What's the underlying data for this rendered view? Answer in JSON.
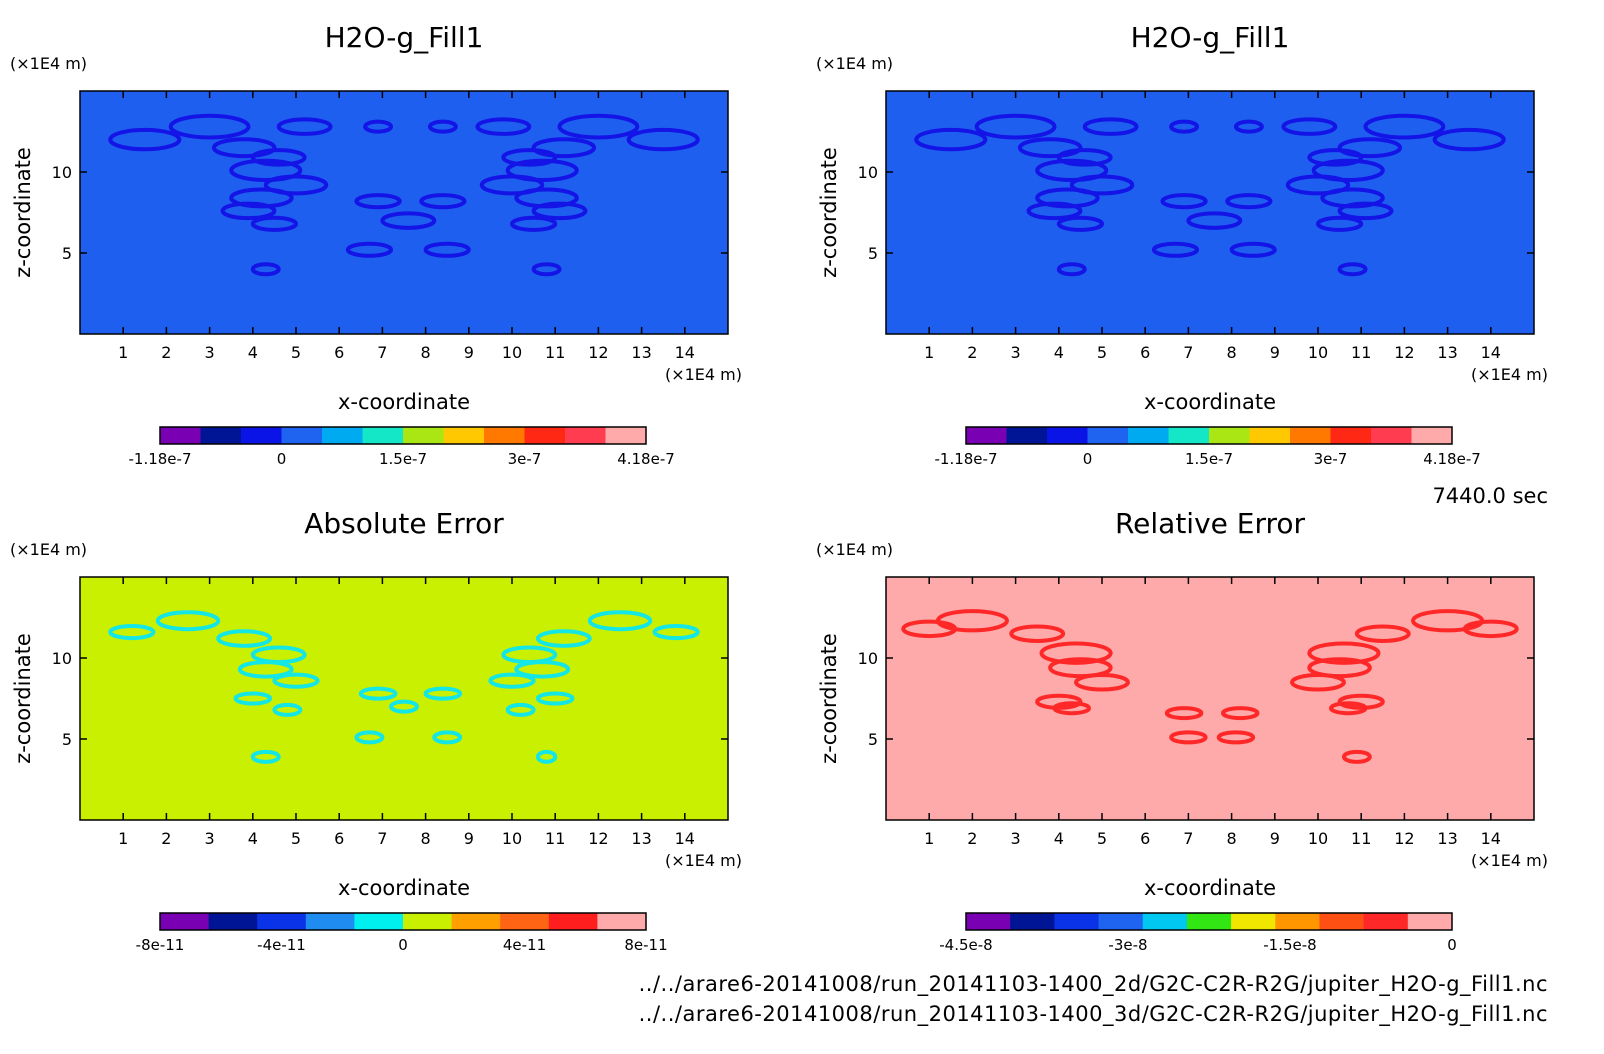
{
  "time_label": "7440.0 sec",
  "footer": {
    "file1": "../../arare6-20141008/run_20141103-1400_2d/G2C-C2R-R2G/jupiter_H2O-g_Fill1.nc",
    "file2": "../../arare6-20141008/run_20141103-1400_3d/G2C-C2R-R2G/jupiter_H2O-g_Fill1.nc"
  },
  "chart_data": [
    {
      "type": "heatmap",
      "title": "H2O-g_Fill1",
      "xlabel": "x-coordinate",
      "ylabel": "z-coordinate",
      "x_unit": "(×1E4 m)",
      "y_unit": "(×1E4 m)",
      "xlim": [
        0,
        15
      ],
      "ylim": [
        0,
        15
      ],
      "xticks": [
        1,
        2,
        3,
        4,
        5,
        6,
        7,
        8,
        9,
        10,
        11,
        12,
        13,
        14
      ],
      "yticks": [
        5,
        10
      ],
      "background_color": "#1e5ff0",
      "feature_color": "#1414e6",
      "highlight_color": "#3cd2c8",
      "colorbar": {
        "colors": [
          "#7a00b4",
          "#001496",
          "#0a14e6",
          "#1e64f0",
          "#00aaf0",
          "#14e6c8",
          "#aae614",
          "#ffc800",
          "#ff7800",
          "#ff2814",
          "#ff3c50",
          "#ffaaaa"
        ],
        "tick_labels": [
          "-1.18e-7",
          "0",
          "1.5e-7",
          "3e-7",
          "4.18e-7"
        ]
      },
      "features": [
        [
          3.0,
          12.8,
          0.9
        ],
        [
          5.2,
          12.8,
          0.6
        ],
        [
          1.5,
          12.0,
          0.8
        ],
        [
          3.8,
          11.5,
          0.7
        ],
        [
          4.6,
          10.9,
          0.6
        ],
        [
          4.3,
          10.1,
          0.8
        ],
        [
          5.0,
          9.2,
          0.7
        ],
        [
          4.2,
          8.4,
          0.7
        ],
        [
          3.9,
          7.6,
          0.6
        ],
        [
          4.5,
          6.8,
          0.5
        ],
        [
          6.9,
          12.8,
          0.3
        ],
        [
          8.4,
          12.8,
          0.3
        ],
        [
          6.9,
          8.2,
          0.5
        ],
        [
          8.4,
          8.2,
          0.5
        ],
        [
          7.6,
          7.0,
          0.6
        ],
        [
          6.7,
          5.2,
          0.5
        ],
        [
          8.5,
          5.2,
          0.5
        ],
        [
          4.3,
          4.0,
          0.3
        ],
        [
          10.8,
          4.0,
          0.3
        ],
        [
          12.0,
          12.8,
          0.9
        ],
        [
          9.8,
          12.8,
          0.6
        ],
        [
          13.5,
          12.0,
          0.8
        ],
        [
          11.2,
          11.5,
          0.7
        ],
        [
          10.4,
          10.9,
          0.6
        ],
        [
          10.7,
          10.1,
          0.8
        ],
        [
          10.0,
          9.2,
          0.7
        ],
        [
          10.8,
          8.4,
          0.7
        ],
        [
          11.1,
          7.6,
          0.6
        ],
        [
          10.5,
          6.8,
          0.5
        ]
      ]
    },
    {
      "type": "heatmap",
      "title": "H2O-g_Fill1",
      "xlabel": "x-coordinate",
      "ylabel": "z-coordinate",
      "x_unit": "(×1E4 m)",
      "y_unit": "(×1E4 m)",
      "xlim": [
        0,
        15
      ],
      "ylim": [
        0,
        15
      ],
      "xticks": [
        1,
        2,
        3,
        4,
        5,
        6,
        7,
        8,
        9,
        10,
        11,
        12,
        13,
        14
      ],
      "yticks": [
        5,
        10
      ],
      "background_color": "#1e5ff0",
      "feature_color": "#1414e6",
      "highlight_color": "#3cd2c8",
      "colorbar": {
        "colors": [
          "#7a00b4",
          "#001496",
          "#0a14e6",
          "#1e64f0",
          "#00aaf0",
          "#14e6c8",
          "#aae614",
          "#ffc800",
          "#ff7800",
          "#ff2814",
          "#ff3c50",
          "#ffaaaa"
        ],
        "tick_labels": [
          "-1.18e-7",
          "0",
          "1.5e-7",
          "3e-7",
          "4.18e-7"
        ]
      },
      "features": [
        [
          3.0,
          12.8,
          0.9
        ],
        [
          5.2,
          12.8,
          0.6
        ],
        [
          1.5,
          12.0,
          0.8
        ],
        [
          3.8,
          11.5,
          0.7
        ],
        [
          4.6,
          10.9,
          0.6
        ],
        [
          4.3,
          10.1,
          0.8
        ],
        [
          5.0,
          9.2,
          0.7
        ],
        [
          4.2,
          8.4,
          0.7
        ],
        [
          3.9,
          7.6,
          0.6
        ],
        [
          4.5,
          6.8,
          0.5
        ],
        [
          6.9,
          12.8,
          0.3
        ],
        [
          8.4,
          12.8,
          0.3
        ],
        [
          6.9,
          8.2,
          0.5
        ],
        [
          8.4,
          8.2,
          0.5
        ],
        [
          7.6,
          7.0,
          0.6
        ],
        [
          6.7,
          5.2,
          0.5
        ],
        [
          8.5,
          5.2,
          0.5
        ],
        [
          4.3,
          4.0,
          0.3
        ],
        [
          10.8,
          4.0,
          0.3
        ],
        [
          12.0,
          12.8,
          0.9
        ],
        [
          9.8,
          12.8,
          0.6
        ],
        [
          13.5,
          12.0,
          0.8
        ],
        [
          11.2,
          11.5,
          0.7
        ],
        [
          10.4,
          10.9,
          0.6
        ],
        [
          10.7,
          10.1,
          0.8
        ],
        [
          10.0,
          9.2,
          0.7
        ],
        [
          10.8,
          8.4,
          0.7
        ],
        [
          11.1,
          7.6,
          0.6
        ],
        [
          10.5,
          6.8,
          0.5
        ]
      ]
    },
    {
      "type": "heatmap",
      "title": "Absolute Error",
      "xlabel": "x-coordinate",
      "ylabel": "z-coordinate",
      "x_unit": "(×1E4 m)",
      "y_unit": "(×1E4 m)",
      "xlim": [
        0,
        15
      ],
      "ylim": [
        0,
        15
      ],
      "xticks": [
        1,
        2,
        3,
        4,
        5,
        6,
        7,
        8,
        9,
        10,
        11,
        12,
        13,
        14
      ],
      "yticks": [
        5,
        10
      ],
      "background_color": "#c8f000",
      "feature_color": "#14e6e6",
      "highlight_color": "#14e6e6",
      "colorbar": {
        "colors": [
          "#7a00b4",
          "#001496",
          "#0a32e6",
          "#1e8cf0",
          "#00f0f0",
          "#c8f000",
          "#ffa000",
          "#ff6414",
          "#ff1e1e",
          "#ffaaaa"
        ],
        "tick_labels": [
          "-8e-11",
          "-4e-11",
          "0",
          "4e-11",
          "8e-11"
        ]
      },
      "features": [
        [
          2.5,
          12.3,
          0.7
        ],
        [
          1.2,
          11.6,
          0.5
        ],
        [
          3.8,
          11.2,
          0.6
        ],
        [
          4.6,
          10.2,
          0.6
        ],
        [
          4.3,
          9.3,
          0.6
        ],
        [
          5.0,
          8.6,
          0.5
        ],
        [
          4.0,
          7.5,
          0.4
        ],
        [
          4.8,
          6.8,
          0.3
        ],
        [
          6.9,
          7.8,
          0.4
        ],
        [
          8.4,
          7.8,
          0.4
        ],
        [
          7.5,
          7.0,
          0.3
        ],
        [
          6.7,
          5.1,
          0.3
        ],
        [
          8.5,
          5.1,
          0.3
        ],
        [
          4.3,
          3.9,
          0.3
        ],
        [
          12.5,
          12.3,
          0.7
        ],
        [
          13.8,
          11.6,
          0.5
        ],
        [
          11.2,
          11.2,
          0.6
        ],
        [
          10.4,
          10.2,
          0.6
        ],
        [
          10.7,
          9.3,
          0.6
        ],
        [
          10.0,
          8.6,
          0.5
        ],
        [
          11.0,
          7.5,
          0.4
        ],
        [
          10.2,
          6.8,
          0.3
        ],
        [
          10.8,
          3.9,
          0.2
        ]
      ]
    },
    {
      "type": "heatmap",
      "title": "Relative Error",
      "xlabel": "x-coordinate",
      "ylabel": "z-coordinate",
      "x_unit": "(×1E4 m)",
      "y_unit": "(×1E4 m)",
      "xlim": [
        0,
        15
      ],
      "ylim": [
        0,
        15
      ],
      "xticks": [
        1,
        2,
        3,
        4,
        5,
        6,
        7,
        8,
        9,
        10,
        11,
        12,
        13,
        14
      ],
      "yticks": [
        5,
        10
      ],
      "background_color": "#ffaaaa",
      "feature_color": "#ff2828",
      "highlight_color": "#14c814",
      "colorbar": {
        "colors": [
          "#7a00b4",
          "#001496",
          "#0a32e6",
          "#1e64f0",
          "#00c8f0",
          "#32e614",
          "#f0e600",
          "#ff9600",
          "#ff5014",
          "#ff2828",
          "#ffaaaa"
        ],
        "tick_labels": [
          "-4.5e-8",
          "-3e-8",
          "-1.5e-8",
          "0"
        ]
      },
      "features": [
        [
          2.0,
          12.3,
          0.8
        ],
        [
          1.0,
          11.8,
          0.6
        ],
        [
          3.5,
          11.5,
          0.6
        ],
        [
          4.4,
          10.3,
          0.8
        ],
        [
          4.5,
          9.4,
          0.7
        ],
        [
          5.0,
          8.5,
          0.6
        ],
        [
          4.0,
          7.3,
          0.5
        ],
        [
          4.3,
          6.9,
          0.4
        ],
        [
          13.0,
          12.3,
          0.8
        ],
        [
          14.0,
          11.8,
          0.6
        ],
        [
          11.5,
          11.5,
          0.6
        ],
        [
          10.6,
          10.3,
          0.8
        ],
        [
          10.5,
          9.4,
          0.7
        ],
        [
          10.0,
          8.5,
          0.6
        ],
        [
          11.0,
          7.3,
          0.5
        ],
        [
          10.7,
          6.9,
          0.4
        ],
        [
          6.9,
          6.6,
          0.4
        ],
        [
          8.2,
          6.6,
          0.4
        ],
        [
          7.0,
          5.1,
          0.4
        ],
        [
          8.1,
          5.1,
          0.4
        ],
        [
          10.9,
          3.9,
          0.3
        ]
      ]
    }
  ]
}
